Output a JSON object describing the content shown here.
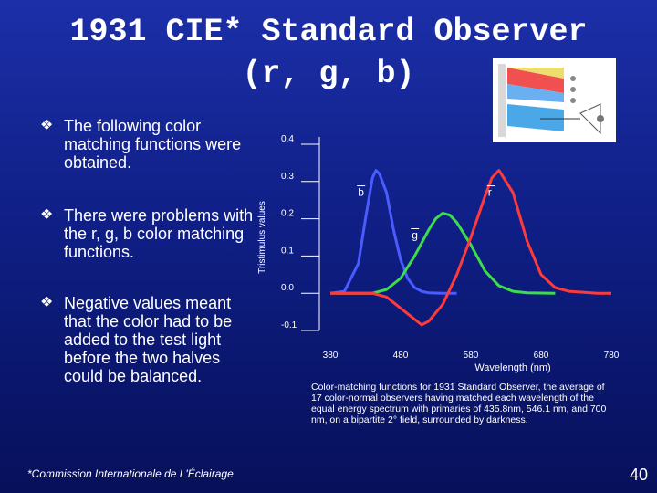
{
  "slide": {
    "title_line1": "1931 CIE* Standard Observer",
    "title_line2": "(r, g, b)",
    "bullets": [
      "The following color matching functions were obtained.",
      "There were problems with the r, g, b color matching functions.",
      "Negative values meant that the color had to be added to the test light before the two halves could be balanced."
    ],
    "footnote": "*Commission Internationale de L'Éclairage",
    "page_number": "40",
    "caption": "Color-matching functions for 1931 Standard Observer, the average of 17 color-normal observers having matched each wavelength of the equal energy spectrum with primaries of 435.8nm, 546.1 nm, and 700 nm, on a bipartite 2° field, surrounded by darkness.",
    "bullet_icon": "diamond-bullet-icon"
  },
  "chart_data": {
    "type": "line",
    "xlabel": "Wavelength (nm)",
    "ylabel": "Tristimulus values",
    "xlim": [
      380,
      780
    ],
    "ylim": [
      -0.1,
      0.4
    ],
    "x_ticks": [
      "380",
      "480",
      "580",
      "680",
      "780"
    ],
    "y_ticks": [
      "0.4",
      "0.3",
      "0.2",
      "0.1",
      "0.0",
      "-0.1"
    ],
    "grid": false,
    "series": [
      {
        "name": "b",
        "color": "#4a5cff",
        "x": [
          380,
          400,
          420,
          430,
          440,
          445,
          450,
          460,
          470,
          480,
          490,
          500,
          510,
          520,
          540,
          560
        ],
        "y": [
          0.0,
          0.005,
          0.08,
          0.2,
          0.31,
          0.33,
          0.32,
          0.27,
          0.17,
          0.09,
          0.04,
          0.015,
          0.005,
          0.001,
          0.0,
          0.0
        ]
      },
      {
        "name": "g",
        "color": "#3ddc4a",
        "x": [
          380,
          420,
          440,
          460,
          480,
          500,
          520,
          530,
          540,
          550,
          560,
          580,
          600,
          620,
          640,
          660,
          700
        ],
        "y": [
          0.0,
          0.0,
          0.0,
          0.01,
          0.04,
          0.1,
          0.17,
          0.2,
          0.215,
          0.21,
          0.19,
          0.13,
          0.06,
          0.02,
          0.005,
          0.001,
          0.0
        ]
      },
      {
        "name": "r",
        "color": "#ff3a3a",
        "x": [
          380,
          420,
          440,
          460,
          480,
          500,
          510,
          520,
          540,
          560,
          580,
          600,
          610,
          620,
          640,
          660,
          680,
          700,
          720,
          760,
          780
        ],
        "y": [
          0.0,
          0.0,
          0.0,
          -0.01,
          -0.04,
          -0.07,
          -0.085,
          -0.075,
          -0.03,
          0.05,
          0.15,
          0.26,
          0.31,
          0.33,
          0.27,
          0.14,
          0.05,
          0.015,
          0.005,
          0.0,
          0.0
        ]
      }
    ],
    "series_labels": [
      "b",
      "g",
      "r"
    ]
  }
}
